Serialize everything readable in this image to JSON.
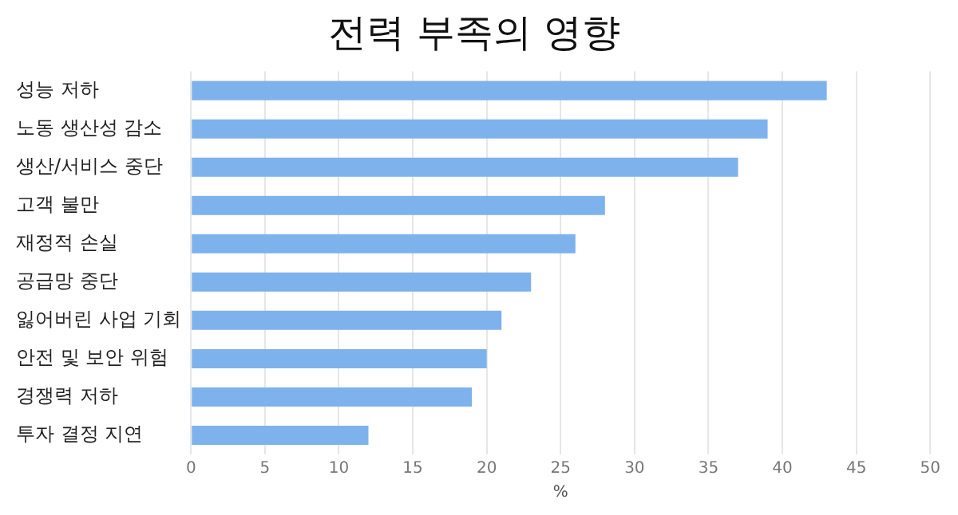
{
  "chart_data": {
    "type": "bar",
    "orientation": "horizontal",
    "title": "전력 부족의 영향",
    "xlabel": "%",
    "categories": [
      "성능 저하",
      "노동 생산성 감소",
      "생산/서비스 중단",
      "고객 불만",
      "재정적 손실",
      "공급망 중단",
      "잃어버린 사업 기회",
      "안전 및 보안 위험",
      "경쟁력 저하",
      "투자 결정 지연"
    ],
    "values": [
      43,
      39,
      37,
      28,
      26,
      23,
      21,
      20,
      19,
      12
    ],
    "color": "#7eb2ec",
    "xlim": [
      0,
      50
    ],
    "xticks": [
      0,
      5,
      10,
      15,
      20,
      25,
      30,
      35,
      40,
      45,
      50
    ],
    "grid": "x",
    "legend": false
  }
}
